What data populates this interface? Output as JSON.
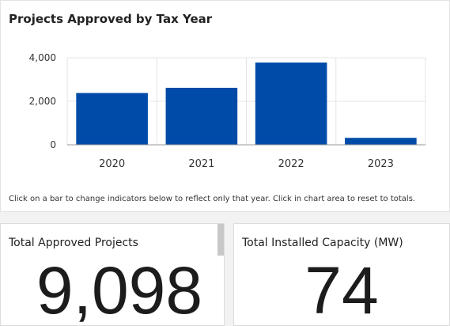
{
  "chart_panel": {
    "note": "Click on a bar to change indicators below to reflect only that year. Click in chart area to reset to totals."
  },
  "chart_data": {
    "type": "bar",
    "title": "Projects Approved by Tax Year",
    "categories": [
      "2020",
      "2021",
      "2022",
      "2023"
    ],
    "values": [
      2380,
      2620,
      3780,
      320
    ],
    "ylim": [
      0,
      4000
    ],
    "yticks": [
      0,
      2000,
      4000
    ],
    "ytick_labels": [
      "0",
      "2,000",
      "4,000"
    ],
    "grid": true,
    "bar_color": "#004ba8"
  },
  "kpis": {
    "projects": {
      "label": "Total Approved Projects",
      "value": "9,098"
    },
    "capacity": {
      "label": "Total Installed Capacity (MW)",
      "value": "74"
    }
  }
}
